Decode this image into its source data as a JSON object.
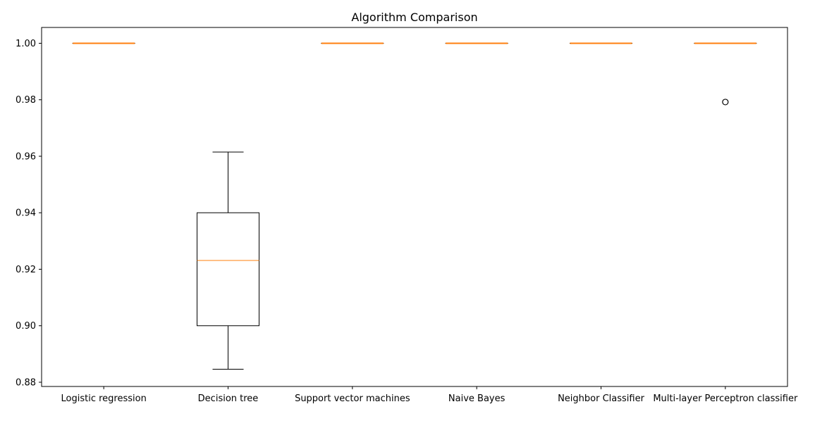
{
  "chart_data": {
    "type": "box",
    "title": "Algorithm Comparison",
    "xlabel": "",
    "ylabel": "",
    "ylim": [
      0.8785,
      1.0056
    ],
    "y_ticks": [
      0.88,
      0.9,
      0.92,
      0.94,
      0.96,
      0.98,
      1.0
    ],
    "y_tick_labels": [
      "0.88",
      "0.90",
      "0.92",
      "0.94",
      "0.96",
      "0.98",
      "1.00"
    ],
    "grid": false,
    "categories": [
      "Logistic regression",
      "Decision tree",
      "Support vector machines",
      "Naive Bayes",
      "Neighbor Classifier",
      "Multi-layer Perceptron classifier"
    ],
    "boxes": [
      {
        "whisker_low": 1.0,
        "q1": 1.0,
        "median": 1.0,
        "q3": 1.0,
        "whisker_high": 1.0,
        "outliers": []
      },
      {
        "whisker_low": 0.8846,
        "q1": 0.9,
        "median": 0.9231,
        "q3": 0.94,
        "whisker_high": 0.9615,
        "outliers": []
      },
      {
        "whisker_low": 1.0,
        "q1": 1.0,
        "median": 1.0,
        "q3": 1.0,
        "whisker_high": 1.0,
        "outliers": []
      },
      {
        "whisker_low": 1.0,
        "q1": 1.0,
        "median": 1.0,
        "q3": 1.0,
        "whisker_high": 1.0,
        "outliers": []
      },
      {
        "whisker_low": 1.0,
        "q1": 1.0,
        "median": 1.0,
        "q3": 1.0,
        "whisker_high": 1.0,
        "outliers": []
      },
      {
        "whisker_low": 1.0,
        "q1": 1.0,
        "median": 1.0,
        "q3": 1.0,
        "whisker_high": 1.0,
        "outliers": [
          0.9792
        ]
      }
    ],
    "colors": {
      "box": "#000000",
      "median": "#ff7f0e",
      "outlier": "#000000"
    }
  }
}
